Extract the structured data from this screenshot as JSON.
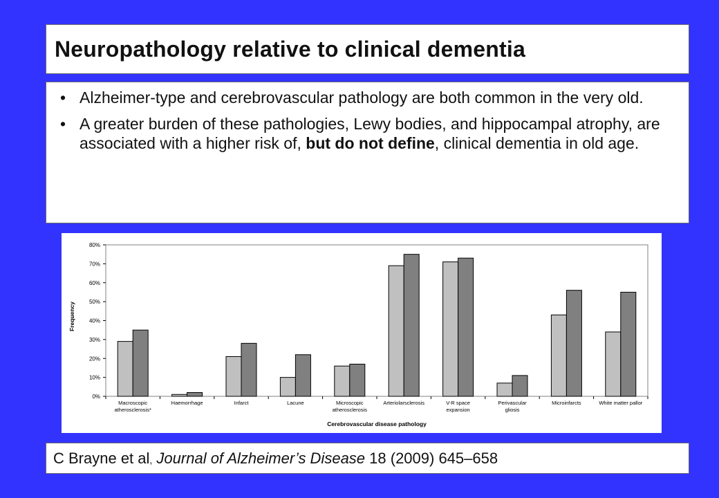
{
  "slide": {
    "title": "Neuropathology relative to clinical dementia",
    "bullets": [
      {
        "text": "Alzheimer-type and cerebrovascular pathology are both common in the very old."
      },
      {
        "before": "A greater burden of these pathologies, Lewy bodies, and hippocampal atrophy, are associated with a higher risk of, ",
        "bold": "but do not define",
        "after": ", clinical dementia in old age."
      }
    ],
    "bullet_glyph": "•",
    "citation": {
      "authors": "C Brayne et al",
      "comma": ",",
      "journal": "Journal of Alzheimer’s Disease",
      "details": " 18 (2009) 645–658"
    }
  },
  "colors": {
    "background": "#3333ff",
    "series_light": "#c0c0c0",
    "series_dark": "#808080"
  },
  "chart_data": {
    "type": "bar",
    "xlabel": "Cerebrovascular disease pathology",
    "ylabel": "Frequency",
    "ylim": [
      0,
      80
    ],
    "yticks": [
      0,
      10,
      20,
      30,
      40,
      50,
      60,
      70,
      80
    ],
    "ytick_labels": [
      "0%",
      "10%",
      "20%",
      "30%",
      "40%",
      "50%",
      "60%",
      "70%",
      "80%"
    ],
    "grid": false,
    "legend": "none",
    "categories": [
      [
        "Macroscopic",
        "atherosclerosis*"
      ],
      [
        "Haemorrhage"
      ],
      [
        "Infarct"
      ],
      [
        "Lacune"
      ],
      [
        "Microscopic",
        "atherosclerosis"
      ],
      [
        "Arteriolarsclerosis"
      ],
      [
        "V-R space",
        "expansion"
      ],
      [
        "Perivascular",
        "gliosis"
      ],
      [
        "Microinfarcts"
      ],
      [
        "White matter pallor"
      ]
    ],
    "series": [
      {
        "values": [
          29,
          1,
          21,
          10,
          16,
          69,
          71,
          7,
          43,
          34
        ]
      },
      {
        "values": [
          35,
          2,
          28,
          22,
          17,
          75,
          73,
          11,
          56,
          55
        ]
      }
    ]
  }
}
